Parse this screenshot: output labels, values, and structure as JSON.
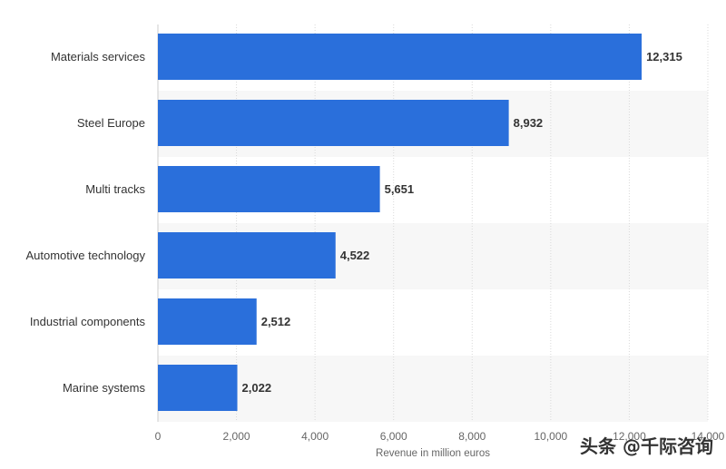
{
  "chart_data": {
    "type": "bar",
    "orientation": "horizontal",
    "categories": [
      "Materials services",
      "Steel Europe",
      "Multi tracks",
      "Automotive technology",
      "Industrial components",
      "Marine systems"
    ],
    "values": [
      12315,
      8932,
      5651,
      4522,
      2512,
      2022
    ],
    "data_labels": [
      "12,315",
      "8,932",
      "5,651",
      "4,522",
      "2,512",
      "2,022"
    ],
    "xlim": [
      0,
      14000
    ],
    "x_ticks": [
      0,
      2000,
      4000,
      6000,
      8000,
      10000,
      12000,
      14000
    ],
    "x_tick_labels": [
      "0",
      "2,000",
      "4,000",
      "6,000",
      "8,000",
      "10,000",
      "12,000",
      "14,000"
    ],
    "xlabel": "Revenue in million euros",
    "grid": true,
    "bar_color": "#2a6fdb"
  },
  "watermark": {
    "text": "头条 @千际咨询"
  }
}
